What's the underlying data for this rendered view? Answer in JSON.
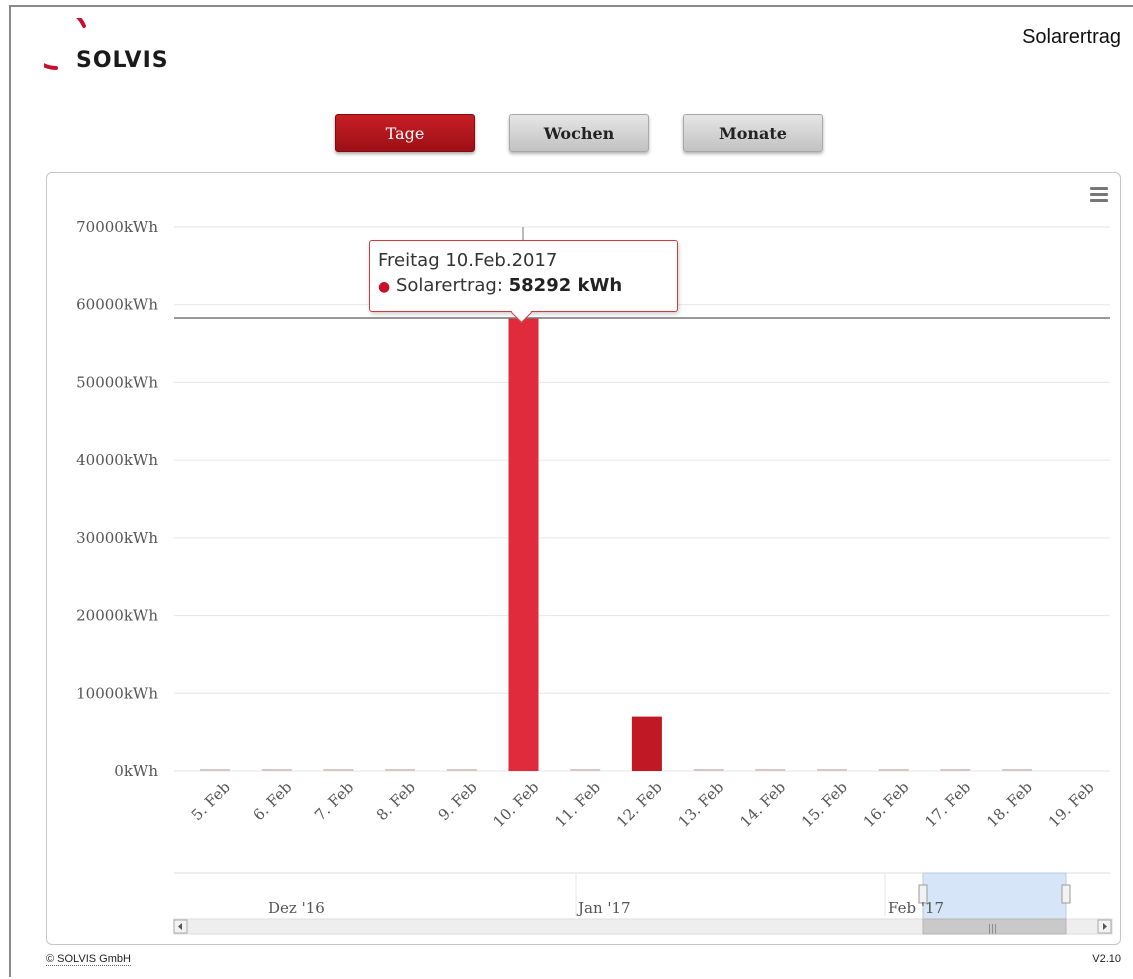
{
  "brand": {
    "logo_text": "SOLVIS",
    "color": "#c8102e"
  },
  "header": {
    "title": "Solarertrag"
  },
  "range_buttons": [
    {
      "label": "Tage",
      "active": true
    },
    {
      "label": "Wochen",
      "active": false
    },
    {
      "label": "Monate",
      "active": false
    }
  ],
  "chart_menu_icon": "hamburger-menu-icon",
  "tooltip": {
    "date": "Freitag 10.Feb.2017",
    "series": "Solarertrag",
    "value": "58292 kWh"
  },
  "navigator": {
    "labels": [
      "Dez '16",
      "Jan '17",
      "Feb '17"
    ],
    "handle_icon": "scroll-grip-icon",
    "left_arrow_icon": "arrow-left-icon",
    "right_arrow_icon": "arrow-right-icon"
  },
  "footer": {
    "copyright": "© SOLVIS GmbH",
    "version": "V2.10"
  },
  "chart_data": {
    "type": "bar",
    "categories": [
      "5. Feb",
      "6. Feb",
      "7. Feb",
      "8. Feb",
      "9. Feb",
      "10. Feb",
      "11. Feb",
      "12. Feb",
      "13. Feb",
      "14. Feb",
      "15. Feb",
      "16. Feb",
      "17. Feb",
      "18. Feb",
      "19. Feb"
    ],
    "series": [
      {
        "name": "Solarertrag",
        "color": "#d7263d",
        "values": [
          0,
          0,
          0,
          0,
          0,
          58292,
          0,
          7000,
          0,
          0,
          0,
          0,
          0,
          0,
          null
        ]
      }
    ],
    "yticks": [
      "0kWh",
      "10000kWh",
      "20000kWh",
      "30000kWh",
      "40000kWh",
      "50000kWh",
      "60000kWh",
      "70000kWh"
    ],
    "ylim": [
      0,
      70000
    ],
    "highlight_index": 5,
    "grid": true
  }
}
